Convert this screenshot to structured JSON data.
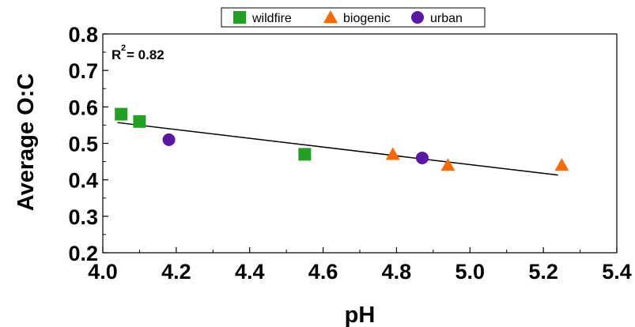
{
  "chart_data": {
    "type": "scatter",
    "xlabel": "pH",
    "ylabel": "Average O:C",
    "xlim": [
      4.0,
      5.4
    ],
    "ylim": [
      0.2,
      0.8
    ],
    "x_ticks": [
      "4.0",
      "4.2",
      "4.4",
      "4.6",
      "4.8",
      "5.0",
      "5.2",
      "5.4"
    ],
    "y_ticks": [
      "0.2",
      "0.3",
      "0.4",
      "0.5",
      "0.6",
      "0.7",
      "0.8"
    ],
    "legend_position": "top",
    "annotation": {
      "prefix": "R",
      "superscript": "2",
      "text": "= 0.82"
    },
    "series": [
      {
        "name": "wildfire",
        "marker": "square",
        "color": "#22a022",
        "points": [
          {
            "x": 4.05,
            "y": 0.58
          },
          {
            "x": 4.1,
            "y": 0.56
          },
          {
            "x": 4.55,
            "y": 0.47
          }
        ]
      },
      {
        "name": "biogenic",
        "marker": "triangle",
        "color": "#ff6a00",
        "points": [
          {
            "x": 4.79,
            "y": 0.47
          },
          {
            "x": 4.94,
            "y": 0.44
          },
          {
            "x": 5.25,
            "y": 0.44
          }
        ]
      },
      {
        "name": "urban",
        "marker": "circle",
        "color": "#5a17a6",
        "points": [
          {
            "x": 4.18,
            "y": 0.51
          },
          {
            "x": 4.87,
            "y": 0.46
          }
        ]
      }
    ],
    "fit_line": {
      "x": [
        4.04,
        5.24
      ],
      "y": [
        0.557,
        0.413
      ],
      "color": "#000000"
    }
  }
}
